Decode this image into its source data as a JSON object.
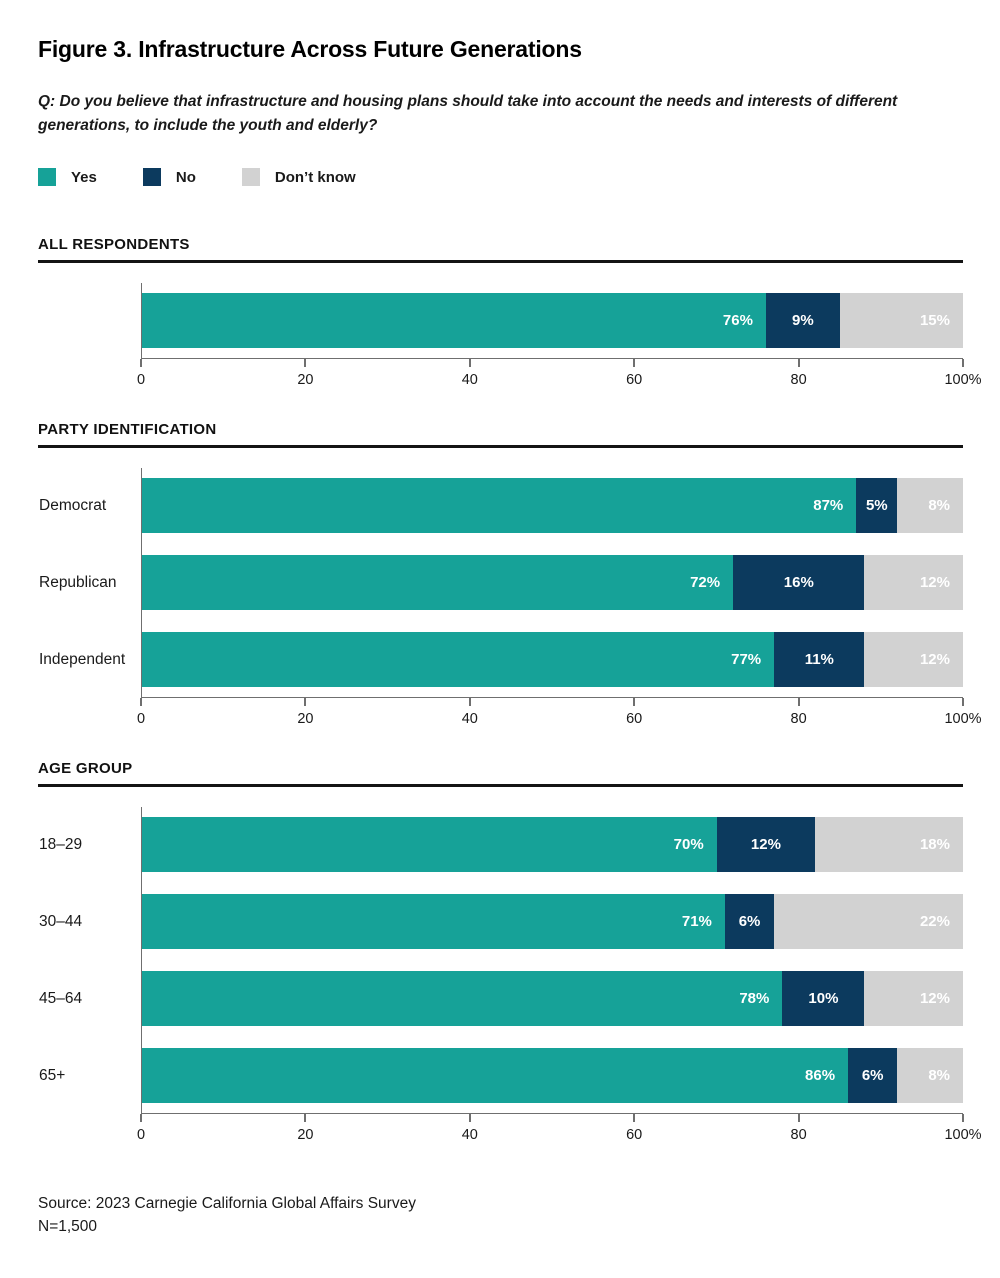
{
  "header": {
    "title": "Figure 3. Infrastructure Across Future Generations",
    "question_lines": [
      "Q: Do you believe that infrastructure and housing plans should take into account the needs and interests of different",
      "generations, to include the youth and elderly?"
    ]
  },
  "legend": {
    "position": "top",
    "items": [
      {
        "label": "Yes",
        "color": "#16A298"
      },
      {
        "label": "No",
        "color": "#0C3A5E"
      },
      {
        "label": "Don’t know",
        "color": "#D2D2D2"
      }
    ]
  },
  "colors": {
    "yes": "#16A298",
    "no": "#0C3A5E",
    "dont_know": "#D2D2D2",
    "axis_line": "#6F6F6F",
    "header_rule": "#141414",
    "value_label_text": "#FFFFFF"
  },
  "chart_data": [
    {
      "type": "bar",
      "stacked": true,
      "orientation": "horizontal",
      "section": "ALL RESPONDENTS",
      "categories": [
        ""
      ],
      "series": [
        {
          "name": "Yes",
          "color": "#16A298",
          "values": [
            76
          ]
        },
        {
          "name": "No",
          "color": "#0C3A5E",
          "values": [
            9
          ]
        },
        {
          "name": "Don’t know",
          "color": "#D2D2D2",
          "values": [
            15
          ]
        }
      ],
      "value_label_format": "percent",
      "xlim": [
        0,
        100
      ],
      "xticks": [
        {
          "value": 0,
          "label": "0"
        },
        {
          "value": 20,
          "label": "20"
        },
        {
          "value": 40,
          "label": "40"
        },
        {
          "value": 60,
          "label": "60"
        },
        {
          "value": 80,
          "label": "80"
        },
        {
          "value": 100,
          "label": "100%"
        }
      ],
      "grid": false
    },
    {
      "type": "bar",
      "stacked": true,
      "orientation": "horizontal",
      "section": "PARTY IDENTIFICATION",
      "categories": [
        "Democrat",
        "Republican",
        "Independent"
      ],
      "series": [
        {
          "name": "Yes",
          "color": "#16A298",
          "values": [
            87,
            72,
            77
          ]
        },
        {
          "name": "No",
          "color": "#0C3A5E",
          "values": [
            5,
            16,
            11
          ]
        },
        {
          "name": "Don’t know",
          "color": "#D2D2D2",
          "values": [
            8,
            12,
            12
          ]
        }
      ],
      "value_label_format": "percent",
      "xlim": [
        0,
        100
      ],
      "xticks": [
        {
          "value": 0,
          "label": "0"
        },
        {
          "value": 20,
          "label": "20"
        },
        {
          "value": 40,
          "label": "40"
        },
        {
          "value": 60,
          "label": "60"
        },
        {
          "value": 80,
          "label": "80"
        },
        {
          "value": 100,
          "label": "100%"
        }
      ],
      "grid": false
    },
    {
      "type": "bar",
      "stacked": true,
      "orientation": "horizontal",
      "section": "AGE GROUP",
      "categories": [
        "18–29",
        "30–44",
        "45–64",
        "65+"
      ],
      "series": [
        {
          "name": "Yes",
          "color": "#16A298",
          "values": [
            70,
            71,
            78,
            86
          ]
        },
        {
          "name": "No",
          "color": "#0C3A5E",
          "values": [
            12,
            6,
            10,
            6
          ]
        },
        {
          "name": "Don’t know",
          "color": "#D2D2D2",
          "values": [
            18,
            22,
            12,
            8
          ]
        }
      ],
      "value_label_format": "percent",
      "xlim": [
        0,
        100
      ],
      "xticks": [
        {
          "value": 0,
          "label": "0"
        },
        {
          "value": 20,
          "label": "20"
        },
        {
          "value": 40,
          "label": "40"
        },
        {
          "value": 60,
          "label": "60"
        },
        {
          "value": 80,
          "label": "80"
        },
        {
          "value": 100,
          "label": "100%"
        }
      ],
      "grid": false
    }
  ],
  "footer": {
    "source": "Source: 2023 Carnegie California Global Affairs Survey",
    "n": "N=1,500"
  }
}
